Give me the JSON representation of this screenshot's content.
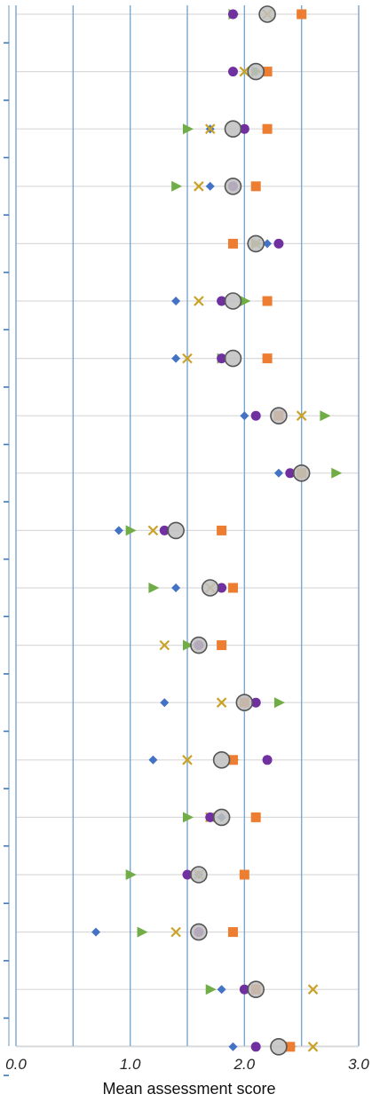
{
  "chart_data": {
    "type": "scatter",
    "xlabel": "Mean assessment score",
    "xlim": [
      0.0,
      3.0
    ],
    "xticks": [
      "0.0",
      "1.0",
      "2.0",
      "3.0"
    ],
    "grid": true,
    "series": [
      {
        "marker": "diamond",
        "color": "#4472C4",
        "values": [
          1.9,
          2.1,
          1.7,
          1.7,
          2.2,
          1.4,
          1.4,
          2.0,
          2.3,
          0.9,
          1.4,
          1.6,
          1.3,
          1.2,
          1.8,
          1.6,
          0.7,
          1.8,
          1.9
        ]
      },
      {
        "marker": "triangle",
        "color": "#70AD47",
        "values": [
          1.9,
          2.1,
          1.5,
          1.4,
          2.1,
          2.0,
          1.8,
          2.7,
          2.8,
          1.0,
          1.2,
          1.5,
          2.3,
          1.9,
          1.5,
          1.0,
          1.1,
          1.7,
          2.4
        ]
      },
      {
        "marker": "square",
        "color": "#ED7D31",
        "values": [
          2.5,
          2.2,
          2.2,
          2.1,
          1.9,
          2.2,
          2.2,
          2.3,
          2.5,
          1.8,
          1.9,
          1.8,
          2.0,
          1.9,
          2.1,
          2.0,
          1.9,
          2.1,
          2.4
        ]
      },
      {
        "marker": "x",
        "color": "#C9A227",
        "values": [
          2.2,
          2.0,
          1.7,
          1.6,
          2.1,
          1.6,
          1.5,
          2.5,
          2.5,
          1.2,
          1.7,
          1.3,
          1.8,
          1.5,
          1.7,
          1.6,
          1.4,
          2.6,
          2.6
        ]
      },
      {
        "marker": "circle",
        "color": "#7030A0",
        "values": [
          1.9,
          1.9,
          2.0,
          1.9,
          2.3,
          1.8,
          1.8,
          2.1,
          2.4,
          1.3,
          1.8,
          1.6,
          2.1,
          2.2,
          1.7,
          1.5,
          1.6,
          2.0,
          2.1
        ]
      },
      {
        "marker": "big-circle",
        "color": "#BFBFBF",
        "values": [
          2.2,
          2.1,
          1.9,
          1.9,
          2.1,
          1.9,
          1.9,
          2.3,
          2.5,
          1.4,
          1.7,
          1.6,
          2.0,
          1.8,
          1.8,
          1.6,
          1.6,
          2.1,
          2.3
        ]
      }
    ]
  }
}
